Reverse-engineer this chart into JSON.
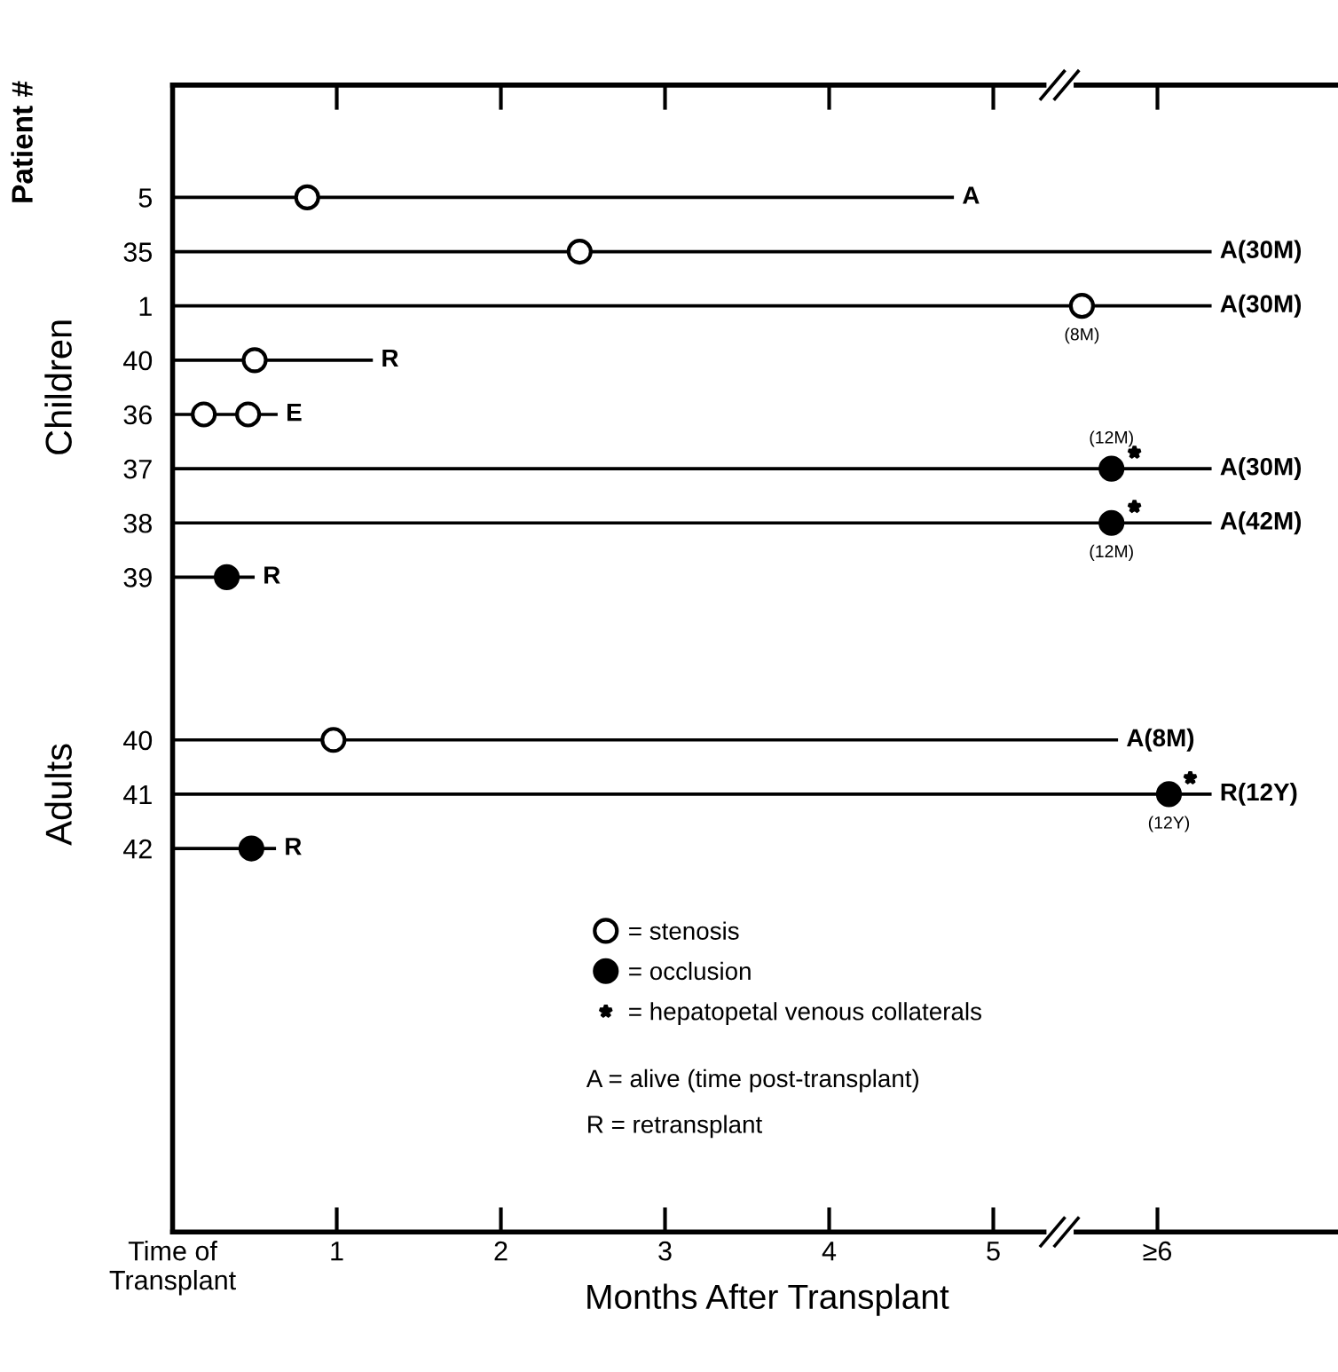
{
  "chart_data": {
    "type": "bar",
    "orientation": "horizontal",
    "xlabel": "Months After Transplant",
    "ylabel": "Patient #",
    "categories": [
      "5",
      "35",
      "1",
      "40",
      "36",
      "37",
      "38",
      "39",
      null,
      null,
      "40",
      "41",
      "42",
      null,
      null,
      null,
      null,
      null,
      null
    ],
    "xlim": [
      0,
      7.1
    ],
    "xticks": [
      {
        "value": 0,
        "label": "Time of\nTransplant"
      },
      1,
      2,
      3,
      4,
      5,
      {
        "value": 6,
        "label": "≥6"
      }
    ],
    "grid": false,
    "legend": "bottom",
    "series": [
      {
        "color": "#000000",
        "values": [
          4.76,
          6.33,
          6.33,
          1.22,
          0.64,
          6.33,
          6.33,
          0.5,
          null,
          null,
          5.76,
          6.33,
          0.63,
          null,
          null,
          null,
          null,
          null,
          null
        ],
        "value_labels": [
          "A",
          "A(30M)",
          "A(30M)",
          "R",
          "E",
          "A(30M)",
          "A(42M)",
          "R",
          null,
          null,
          "A(8M)",
          "R(12Y)",
          "R",
          null,
          null,
          null,
          null,
          null,
          null
        ]
      },
      {
        "type": "scatter",
        "name": "= stenosis",
        "color": "#ffffff",
        "marker": "circle",
        "values": [
          0.82,
          2.48,
          5.54,
          0.5,
          0.19,
          null,
          null,
          null,
          null,
          null,
          0.98,
          null,
          null,
          null,
          null,
          null,
          null,
          null,
          null
        ]
      },
      {
        "type": "scatter",
        "color": "#ffffff",
        "marker": "circle",
        "values": [
          null,
          null,
          null,
          null,
          0.46,
          null,
          null,
          null,
          null,
          null,
          null,
          null,
          null,
          null,
          null,
          null,
          null,
          null,
          null
        ]
      },
      {
        "type": "scatter",
        "name": "= occlusion",
        "color": "#000000",
        "marker": "circle",
        "values": [
          null,
          null,
          null,
          null,
          null,
          5.72,
          5.72,
          0.33,
          null,
          null,
          null,
          6.07,
          0.48,
          null,
          null,
          null,
          null,
          null,
          null
        ]
      },
      {
        "type": "scatter",
        "name": "= hepatopetal venous collaterals",
        "color": "#000000",
        "marker": "star",
        "values": [
          null,
          null,
          null,
          null,
          null,
          5.86,
          5.86,
          null,
          null,
          null,
          null,
          6.2,
          null,
          null,
          null,
          null,
          null,
          null,
          null
        ]
      }
    ],
    "annotations": [
      "Children",
      "Adults",
      "A = alive (time post-transplant)",
      "R = retransplant",
      {
        "text": "(8M)",
        "x": 5.54,
        "y": "1"
      },
      {
        "text": "(12M)",
        "x": 5.72,
        "y": "37"
      },
      {
        "text": "(12M)",
        "x": 5.72,
        "y": "38"
      },
      {
        "text": "(12Y)",
        "x": 6.07,
        "y": "41"
      }
    ]
  }
}
